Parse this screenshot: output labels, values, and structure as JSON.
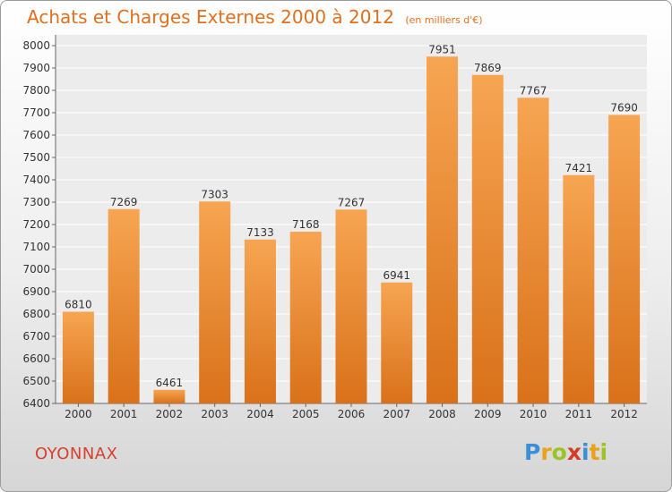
{
  "title": "Achats et Charges Externes 2000 à 2012",
  "subtitle": "(en milliers d'€)",
  "place": "OYONNAX",
  "logo": {
    "letters": [
      "P",
      "r",
      "o",
      "x",
      "i",
      "t",
      "i"
    ],
    "colors": [
      "#3a8fd6",
      "#e9a21a",
      "#9ac424",
      "#d63b2a",
      "#3a8fd6",
      "#e9a21a",
      "#9ac424"
    ]
  },
  "colors": {
    "bar_top": "#f7a552",
    "bar_bottom": "#d9711a",
    "title": "#e0701e",
    "place": "#d6402e"
  },
  "chart_data": {
    "type": "bar",
    "title": "Achats et Charges Externes 2000 à 2012",
    "subtitle": "(en milliers d'€)",
    "categories": [
      "2000",
      "2001",
      "2002",
      "2003",
      "2004",
      "2005",
      "2006",
      "2007",
      "2008",
      "2009",
      "2010",
      "2011",
      "2012"
    ],
    "values": [
      6810,
      7269,
      6461,
      7303,
      7133,
      7168,
      7267,
      6941,
      7951,
      7869,
      7767,
      7421,
      7690
    ],
    "ylim": [
      6400,
      8000
    ],
    "yticks": [
      6400,
      6500,
      6600,
      6700,
      6800,
      6900,
      7000,
      7100,
      7200,
      7300,
      7400,
      7500,
      7600,
      7700,
      7800,
      7900,
      8000
    ],
    "xlabel": "",
    "ylabel": "",
    "grid": true
  }
}
